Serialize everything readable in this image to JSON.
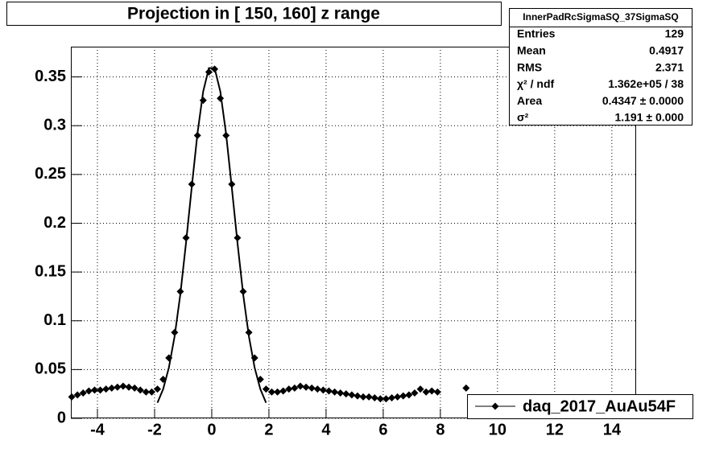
{
  "chart_data": {
    "type": "scatter",
    "title": "Projection in [ 150, 160] z range",
    "xlim": [
      -4.93,
      14.85
    ],
    "ylim": [
      0,
      0.381
    ],
    "xticks": [
      -4,
      -2,
      0,
      2,
      4,
      6,
      8,
      10,
      12,
      14
    ],
    "yticks": [
      0,
      0.05,
      0.1,
      0.15,
      0.2,
      0.25,
      0.3,
      0.35
    ],
    "grid": true,
    "legend": "bottom-right",
    "series": [
      {
        "name": "daq_2017_AuAu54F",
        "color": "#000000",
        "x": [
          -4.9,
          -4.7,
          -4.5,
          -4.3,
          -4.1,
          -3.9,
          -3.7,
          -3.5,
          -3.3,
          -3.1,
          -2.9,
          -2.7,
          -2.5,
          -2.3,
          -2.1,
          -1.9,
          -1.7,
          -1.5,
          -1.3,
          -1.1,
          -0.9,
          -0.7,
          -0.5,
          -0.3,
          -0.1,
          0.1,
          0.3,
          0.5,
          0.7,
          0.9,
          1.1,
          1.3,
          1.5,
          1.7,
          1.9,
          2.1,
          2.3,
          2.5,
          2.7,
          2.9,
          3.1,
          3.3,
          3.5,
          3.7,
          3.9,
          4.1,
          4.3,
          4.5,
          4.7,
          4.9,
          5.1,
          5.3,
          5.5,
          5.7,
          5.9,
          6.1,
          6.3,
          6.5,
          6.7,
          6.9,
          7.1,
          7.3,
          7.5,
          7.7,
          7.9,
          8.9
        ],
        "values": [
          0.022,
          0.024,
          0.026,
          0.028,
          0.029,
          0.029,
          0.03,
          0.031,
          0.032,
          0.033,
          0.032,
          0.031,
          0.029,
          0.027,
          0.027,
          0.03,
          0.04,
          0.062,
          0.088,
          0.13,
          0.185,
          0.24,
          0.29,
          0.326,
          0.355,
          0.358,
          0.328,
          0.29,
          0.24,
          0.185,
          0.13,
          0.088,
          0.062,
          0.04,
          0.03,
          0.027,
          0.027,
          0.028,
          0.03,
          0.031,
          0.033,
          0.032,
          0.031,
          0.03,
          0.029,
          0.028,
          0.027,
          0.026,
          0.025,
          0.024,
          0.023,
          0.022,
          0.022,
          0.021,
          0.02,
          0.02,
          0.021,
          0.022,
          0.023,
          0.024,
          0.026,
          0.03,
          0.027,
          0.028,
          0.027,
          0.031
        ]
      }
    ],
    "fit": {
      "color": "#000000",
      "x": [
        -1.9,
        -1.7,
        -1.5,
        -1.3,
        -1.1,
        -0.9,
        -0.7,
        -0.5,
        -0.3,
        -0.1,
        0.1,
        0.3,
        0.5,
        0.7,
        0.9,
        1.1,
        1.3,
        1.5,
        1.7,
        1.9
      ],
      "values": [
        0.016,
        0.03,
        0.052,
        0.084,
        0.127,
        0.18,
        0.237,
        0.292,
        0.335,
        0.359,
        0.359,
        0.335,
        0.292,
        0.237,
        0.18,
        0.127,
        0.084,
        0.052,
        0.03,
        0.016
      ]
    },
    "stats": {
      "title": "InnerPadRcSigmaSQ_37SigmaSQ",
      "rows": [
        {
          "label": "Entries",
          "value": "129"
        },
        {
          "label": "Mean",
          "value": "0.4917"
        },
        {
          "label": "RMS",
          "value": "2.371"
        },
        {
          "label": "χ² / ndf",
          "value": "1.362e+05 / 38"
        },
        {
          "label": "Area",
          "value": "0.4347 ± 0.0000"
        },
        {
          "label": "σ²",
          "value": "1.191 ± 0.000"
        }
      ]
    }
  }
}
